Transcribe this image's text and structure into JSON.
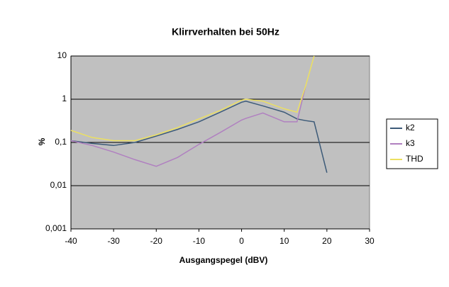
{
  "chart_data": {
    "type": "line",
    "title": "Klirrverhalten bei 50Hz",
    "x_label": "Ausgangspegel (dBV)",
    "y_label": "%",
    "x": [
      -40,
      -35,
      -30,
      -25,
      -20,
      -15,
      -10,
      -5,
      0,
      1,
      5,
      10,
      13,
      15,
      17,
      20
    ],
    "series": [
      {
        "name": "k2",
        "color": "#3c5a78",
        "values": [
          0.11,
          0.095,
          0.085,
          0.1,
          0.14,
          0.2,
          0.3,
          0.5,
          0.85,
          0.9,
          0.7,
          0.5,
          0.35,
          0.32,
          0.3,
          0.02
        ]
      },
      {
        "name": "k3",
        "color": "#b080c0",
        "values": [
          0.11,
          0.085,
          0.06,
          0.04,
          0.028,
          0.045,
          0.09,
          0.17,
          0.33,
          0.36,
          0.48,
          0.3,
          0.3,
          2,
          null,
          null
        ]
      },
      {
        "name": "THD",
        "color": "#ece060",
        "values": [
          0.19,
          0.13,
          0.11,
          0.11,
          0.15,
          0.22,
          0.35,
          0.55,
          0.95,
          1.0,
          0.9,
          0.6,
          0.5,
          2,
          10,
          null
        ]
      }
    ],
    "xlim": [
      -40,
      30
    ],
    "xticks": [
      -40,
      -30,
      -20,
      -10,
      0,
      10,
      20,
      30
    ],
    "ylim": [
      0.001,
      10
    ],
    "log_y": true,
    "yticks": [
      {
        "value": 0.001,
        "label": "0,001"
      },
      {
        "value": 0.01,
        "label": "0,01"
      },
      {
        "value": 0.1,
        "label": "0,1"
      },
      1,
      10
    ],
    "grid": true,
    "legend": "right"
  }
}
